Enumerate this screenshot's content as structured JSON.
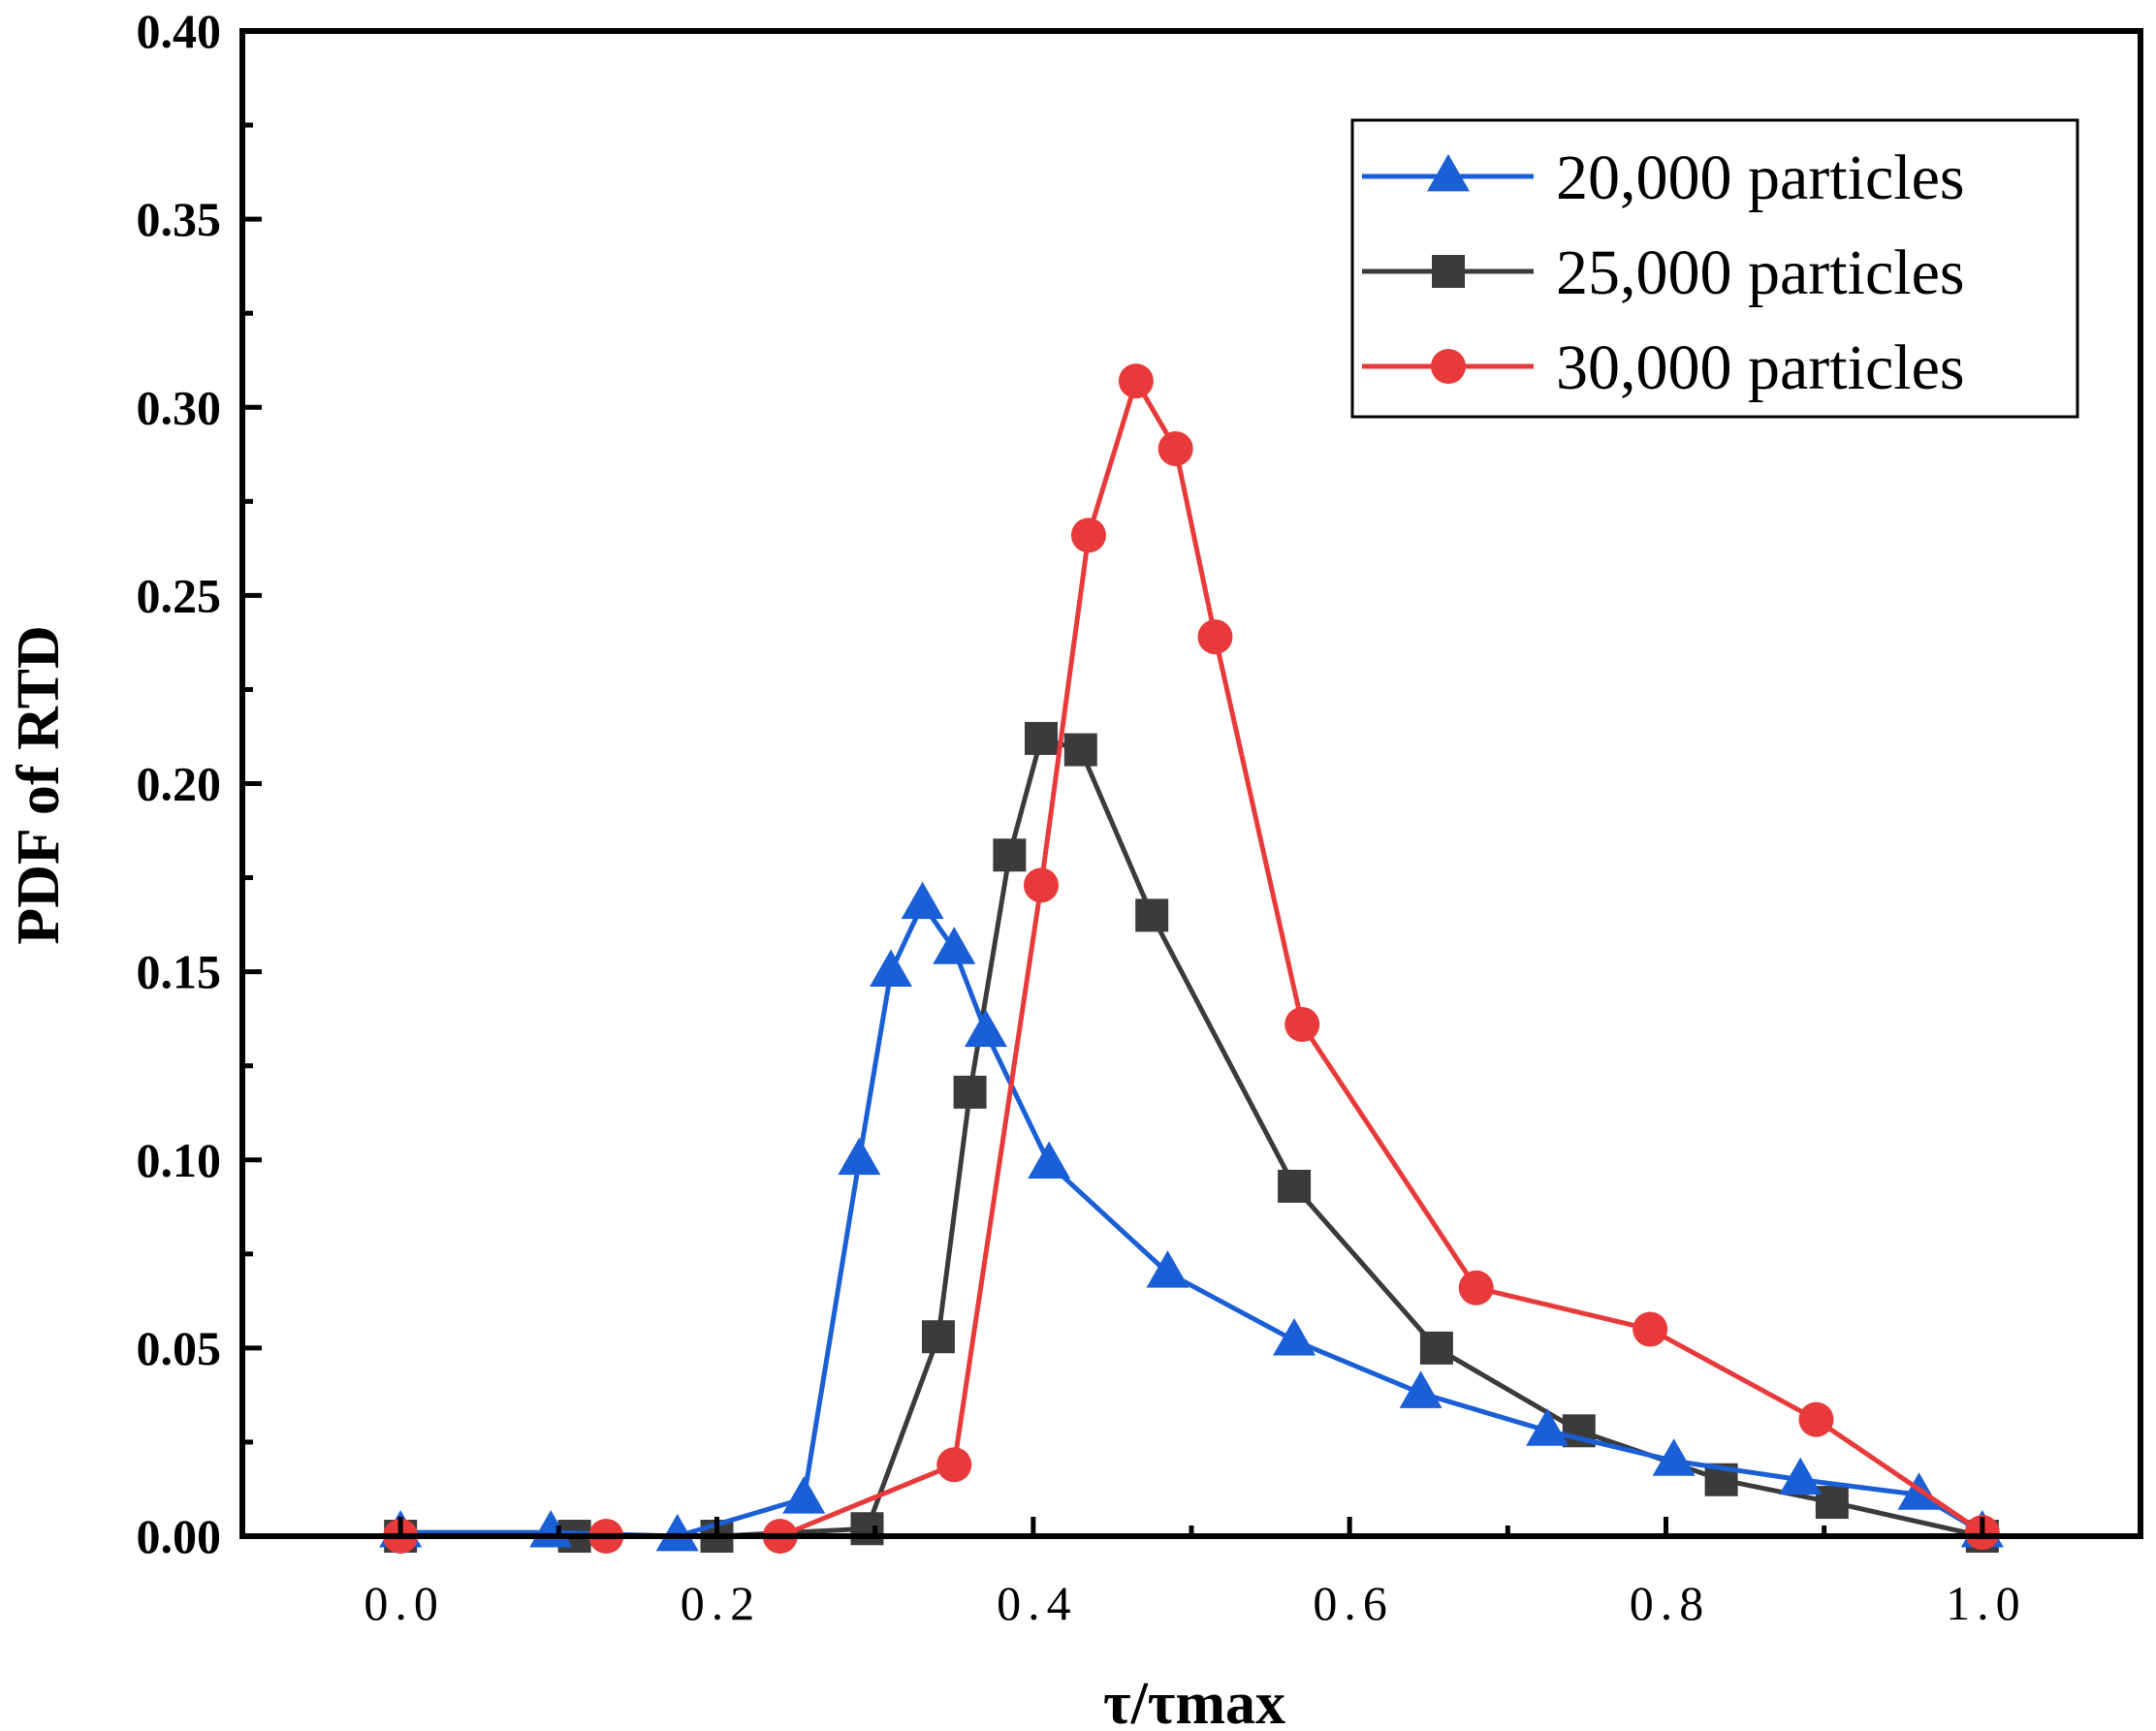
{
  "chart_data": {
    "type": "line",
    "title": "",
    "xlabel": "τ/τmax",
    "ylabel": "PDF of RTD",
    "xlim": [
      -0.1,
      1.1
    ],
    "ylim": [
      0,
      0.4
    ],
    "x_ticks": [
      0.0,
      0.2,
      0.4,
      0.6,
      0.8,
      1.0
    ],
    "x_tick_labels": [
      "0.0",
      "0.2",
      "0.4",
      "0.6",
      "0.8",
      "1.0"
    ],
    "y_ticks": [
      0.0,
      0.05,
      0.1,
      0.15,
      0.2,
      0.25,
      0.3,
      0.35,
      0.4
    ],
    "y_tick_labels": [
      "0.00",
      "0.05",
      "0.10",
      "0.15",
      "0.20",
      "0.25",
      "0.30",
      "0.35",
      "0.40"
    ],
    "legend_position": "top-right",
    "grid": false,
    "series": [
      {
        "name": "20,000 particles",
        "color": "#1a5fd6",
        "marker": "triangle",
        "x": [
          0.0,
          0.095,
          0.175,
          0.255,
          0.29,
          0.31,
          0.33,
          0.35,
          0.37,
          0.41,
          0.485,
          0.565,
          0.645,
          0.725,
          0.805,
          0.885,
          0.96,
          1.0
        ],
        "y": [
          0.001,
          0.001,
          0.0,
          0.01,
          0.1,
          0.15,
          0.168,
          0.156,
          0.134,
          0.099,
          0.07,
          0.052,
          0.038,
          0.028,
          0.02,
          0.015,
          0.011,
          0.001
        ]
      },
      {
        "name": "25,000 particles",
        "color": "#3b3b3b",
        "marker": "square",
        "x": [
          0.0,
          0.11,
          0.2,
          0.295,
          0.34,
          0.36,
          0.385,
          0.405,
          0.43,
          0.475,
          0.565,
          0.655,
          0.745,
          0.835,
          0.905,
          1.0
        ],
        "y": [
          0.0,
          0.0,
          0.0,
          0.002,
          0.053,
          0.118,
          0.181,
          0.212,
          0.209,
          0.165,
          0.093,
          0.05,
          0.028,
          0.015,
          0.009,
          0.0
        ]
      },
      {
        "name": "30,000 particles",
        "color": "#e83a3a",
        "marker": "circle",
        "x": [
          0.0,
          0.13,
          0.24,
          0.35,
          0.405,
          0.435,
          0.465,
          0.49,
          0.515,
          0.57,
          0.68,
          0.79,
          0.895,
          1.0
        ],
        "y": [
          0.0,
          0.0,
          0.0,
          0.019,
          0.173,
          0.266,
          0.307,
          0.289,
          0.239,
          0.136,
          0.066,
          0.055,
          0.031,
          0.001
        ]
      }
    ]
  }
}
